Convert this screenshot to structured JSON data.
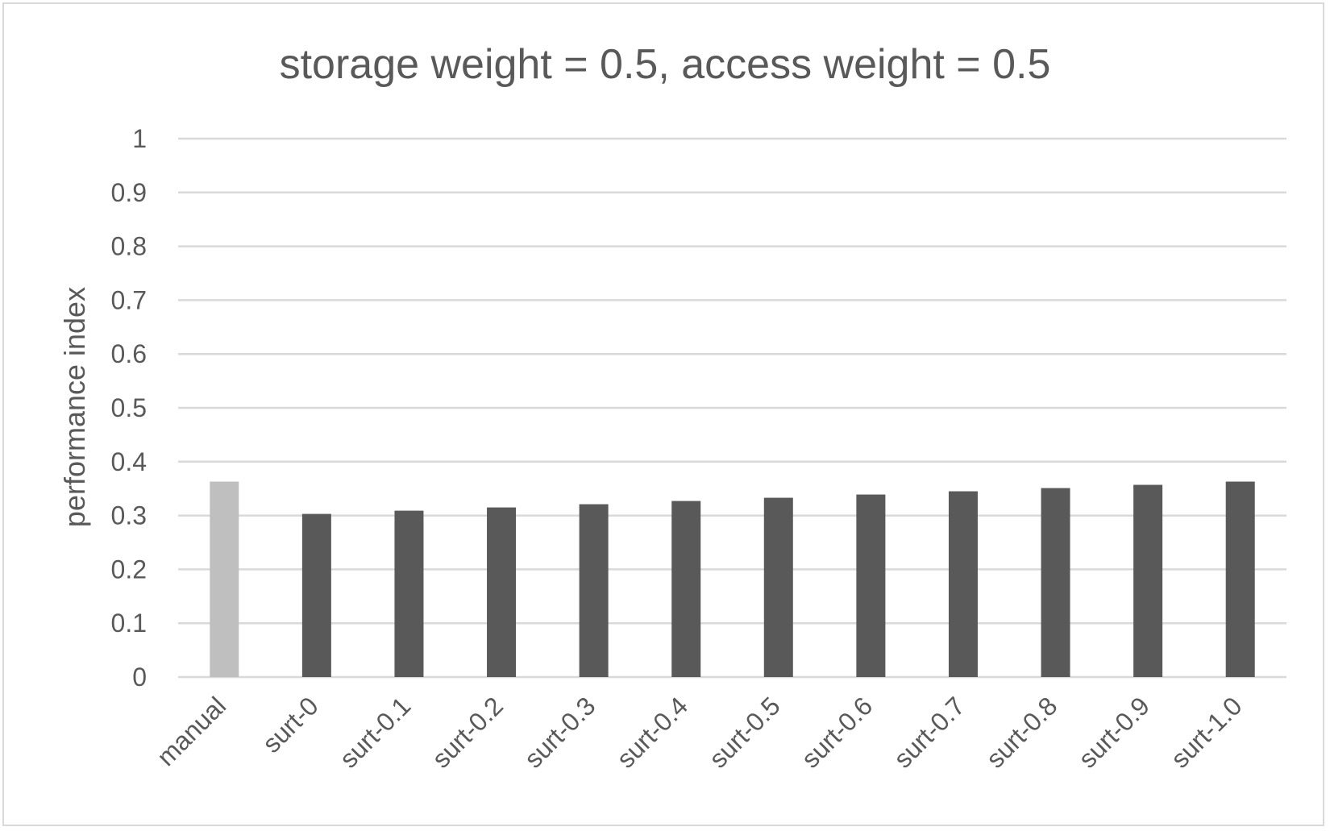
{
  "chart_data": {
    "type": "bar",
    "title": "storage weight = 0.5, access weight = 0.5",
    "xlabel": "",
    "ylabel": "performance index",
    "ylim": [
      0,
      1
    ],
    "yticks": [
      "0",
      "0.1",
      "0.2",
      "0.3",
      "0.4",
      "0.5",
      "0.6",
      "0.7",
      "0.8",
      "0.9",
      "1"
    ],
    "grid": true,
    "legend": "none",
    "categories": [
      "manual",
      "surt-0",
      "surt-0.1",
      "surt-0.2",
      "surt-0.3",
      "surt-0.4",
      "surt-0.5",
      "surt-0.6",
      "surt-0.7",
      "surt-0.8",
      "surt-0.9",
      "surt-1.0"
    ],
    "values": [
      0.363,
      0.303,
      0.309,
      0.315,
      0.321,
      0.327,
      0.333,
      0.339,
      0.345,
      0.351,
      0.357,
      0.363
    ],
    "bar_colors": [
      "#bfbfbf",
      "#595959",
      "#595959",
      "#595959",
      "#595959",
      "#595959",
      "#595959",
      "#595959",
      "#595959",
      "#595959",
      "#595959",
      "#595959"
    ],
    "gridline_color": "#d9d9d9",
    "text_color": "#595959"
  }
}
